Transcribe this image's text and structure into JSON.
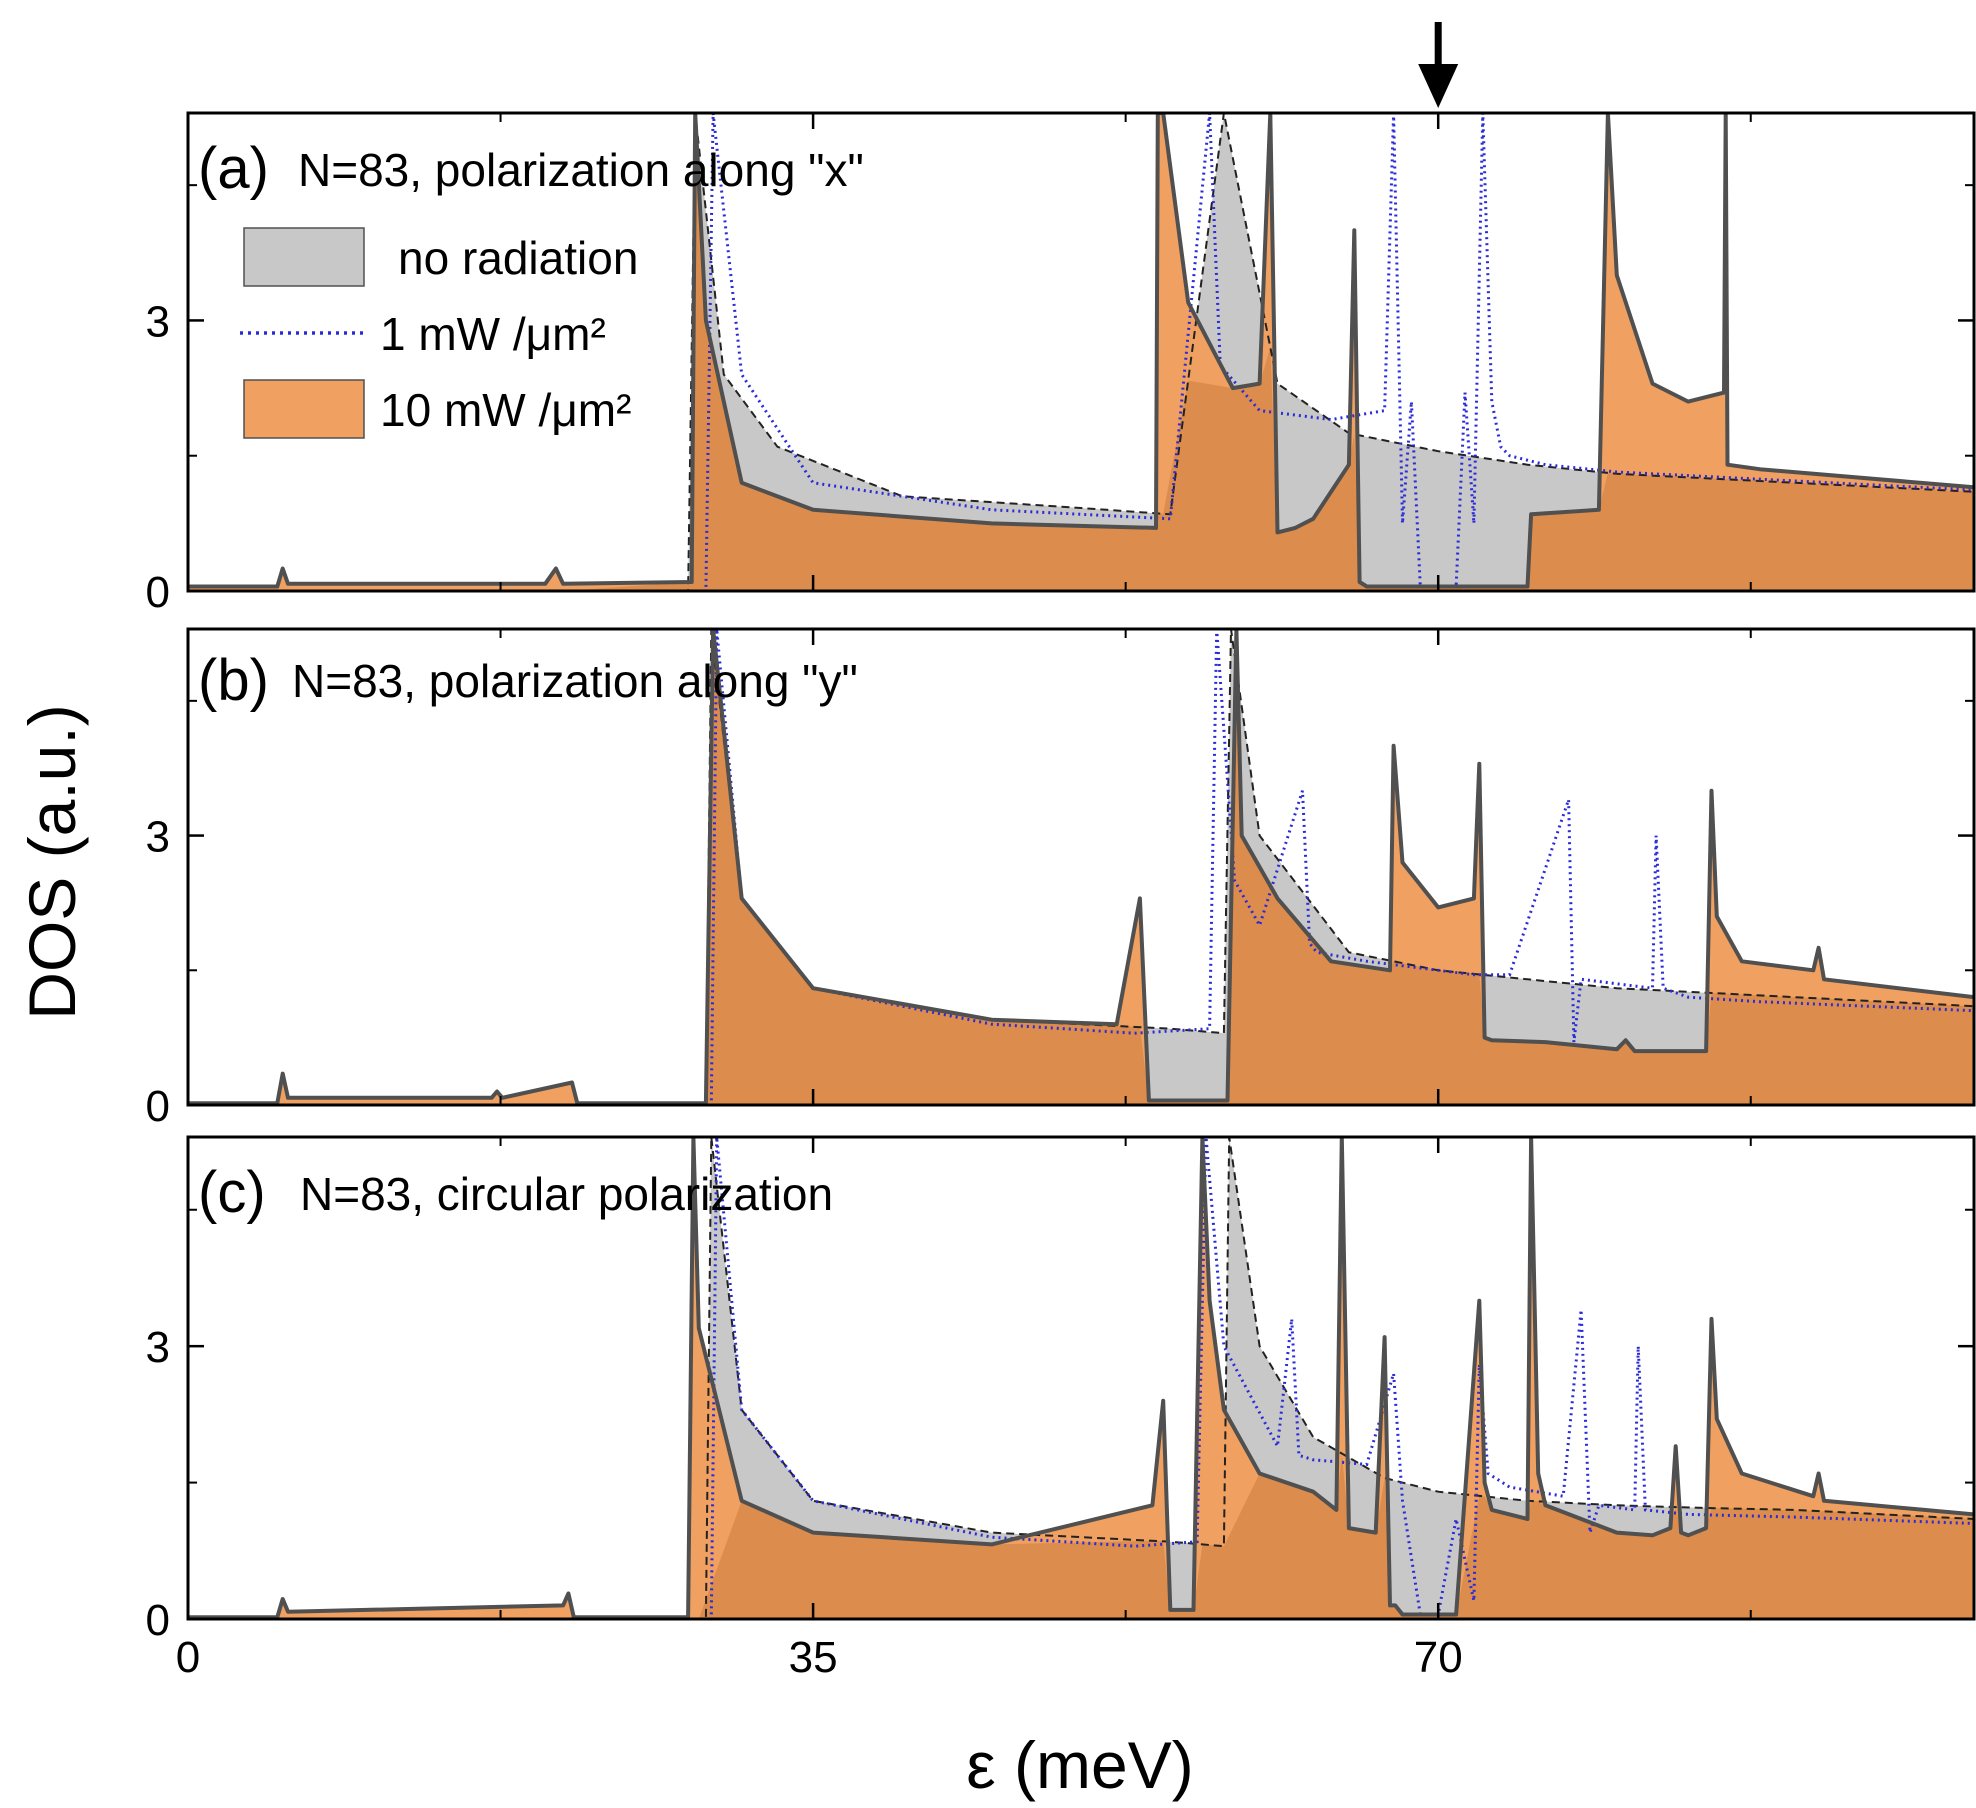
{
  "chart_data": {
    "type": "line",
    "figure": {
      "xlabel": "ε (meV)",
      "ylabel": "DOS (a.u.)",
      "xlim": [
        0,
        100
      ],
      "ylim": [
        0,
        5.3
      ],
      "x_ticks": [
        0,
        35,
        70
      ],
      "x_minor_ticks": [
        17.5,
        52.5,
        87.5
      ],
      "y_ticks": [
        0,
        3
      ],
      "y_minor_ticks": [
        1.5,
        4.5
      ],
      "arrow_at_x": 70
    },
    "legend": {
      "location": "upper-left of panel (a)",
      "entries": [
        {
          "label": "no radiation",
          "style": "gray-fill",
          "color": "#c8c8c8"
        },
        {
          "label": "1 mW /μm²",
          "style": "blue-dotted",
          "color": "#2b2bd8"
        },
        {
          "label": "10 mW /μm²",
          "style": "orange-fill",
          "color": "#f0a060"
        }
      ]
    },
    "colors": {
      "no_radiation_fill": "#c8c8c8",
      "orange_fill": "#f0a060",
      "orange_dark_fill": "#dc8c4c",
      "blue_dotted": "#2b2bd8",
      "outline": "#505050",
      "dotted_red": "#b05050"
    },
    "panels": [
      {
        "id": "a",
        "label": "(a)",
        "title": "N=83, polarization along \"x\"",
        "series": [
          {
            "name": "no radiation",
            "x": [
              0,
              28,
              28.4,
              30,
              33,
              40,
              50,
              55,
              58,
              61,
              65,
              70,
              75,
              80,
              90,
              100
            ],
            "y": [
              0,
              0,
              5.3,
              2.4,
              1.6,
              1.05,
              0.92,
              0.85,
              5.3,
              2.3,
              1.75,
              1.55,
              1.4,
              1.3,
              1.2,
              1.1
            ]
          },
          {
            "name": "1 mW /μm²",
            "x": [
              0,
              29,
              29.4,
              31,
              35,
              45,
              55,
              57.2,
              57.8,
              60,
              64,
              67,
              67.5,
              68,
              68.5,
              69,
              71,
              71.5,
              72,
              72.5,
              73,
              73.5,
              74,
              76,
              80,
              90,
              100
            ],
            "y": [
              0,
              0,
              5.3,
              2.4,
              1.2,
              0.9,
              0.8,
              5.3,
              2.5,
              2.0,
              1.9,
              2.0,
              5.3,
              0.75,
              2.1,
              0.05,
              0.05,
              2.2,
              0.75,
              5.3,
              2.1,
              1.6,
              1.5,
              1.4,
              1.32,
              1.22,
              1.12
            ]
          },
          {
            "name": "10 mW /μm²",
            "x": [
              0,
              5,
              5.3,
              5.6,
              20,
              20.6,
              21,
              28.2,
              28.4,
              29,
              31,
              35,
              45,
              54.2,
              54.3,
              54.6,
              56,
              58.5,
              60,
              60.6,
              61,
              62,
              63,
              65,
              65.3,
              65.6,
              66,
              66.2,
              75,
              75.2,
              79,
              79.5,
              80,
              82,
              84,
              86,
              86.1,
              86.2,
              88,
              100
            ],
            "y": [
              0.05,
              0.05,
              0.25,
              0.08,
              0.08,
              0.25,
              0.08,
              0.1,
              5.3,
              3.0,
              1.2,
              0.9,
              0.75,
              0.7,
              5.3,
              5.3,
              3.2,
              2.25,
              2.3,
              5.3,
              0.65,
              0.7,
              0.8,
              1.4,
              4.0,
              0.1,
              0.05,
              0.05,
              0.05,
              0.85,
              0.9,
              5.3,
              3.5,
              2.3,
              2.1,
              2.2,
              5.3,
              1.4,
              1.35,
              1.15
            ]
          }
        ]
      },
      {
        "id": "b",
        "label": "(b)",
        "title": "N=83, polarization along \"y\"",
        "series": [
          {
            "name": "no radiation",
            "x": [
              0,
              29,
              29.3,
              31,
              35,
              45,
              55,
              58,
              58.4,
              60,
              65,
              70,
              75,
              80,
              85,
              90,
              100
            ],
            "y": [
              0,
              0,
              5.3,
              2.3,
              1.3,
              0.95,
              0.85,
              0.8,
              5.3,
              3.0,
              1.7,
              1.5,
              1.4,
              1.3,
              1.25,
              1.2,
              1.1
            ]
          },
          {
            "name": "1 mW /μm²",
            "x": [
              0,
              29.3,
              29.6,
              31,
              35,
              45,
              53,
              57.2,
              57.6,
              58.6,
              60,
              62.4,
              62.8,
              63.2,
              66,
              72,
              74,
              77.3,
              77.6,
              78,
              82,
              82.2,
              82.6,
              84,
              88,
              100
            ],
            "y": [
              0,
              0,
              5.3,
              2.3,
              1.3,
              0.9,
              0.8,
              0.85,
              5.3,
              2.5,
              2.0,
              3.5,
              1.8,
              1.7,
              1.6,
              1.45,
              1.45,
              3.4,
              0.7,
              1.4,
              1.3,
              3.0,
              1.3,
              1.2,
              1.15,
              1.05
            ]
          },
          {
            "name": "10 mW /μm²",
            "x": [
              0,
              5,
              5.3,
              5.6,
              17,
              17.3,
              17.6,
              21.5,
              21.8,
              22,
              29,
              29.4,
              31,
              35,
              45,
              52,
              53.3,
              53.8,
              54,
              58.2,
              58.7,
              59,
              61,
              64,
              67.3,
              67.5,
              68,
              70,
              72,
              72.3,
              72.6,
              73,
              76,
              80,
              80.5,
              81,
              85,
              85.3,
              85.6,
              87,
              91,
              91.3,
              91.6,
              100
            ],
            "y": [
              0.02,
              0.02,
              0.35,
              0.08,
              0.08,
              0.15,
              0.08,
              0.25,
              0.02,
              0.02,
              0.02,
              5.3,
              2.3,
              1.3,
              0.95,
              0.9,
              2.3,
              0.05,
              0.05,
              0.05,
              5.3,
              3.0,
              2.3,
              1.6,
              1.5,
              4.0,
              2.7,
              2.2,
              2.3,
              3.8,
              0.75,
              0.72,
              0.7,
              0.62,
              0.72,
              0.6,
              0.6,
              3.5,
              2.1,
              1.6,
              1.5,
              1.75,
              1.4,
              1.2
            ]
          }
        ]
      },
      {
        "id": "c",
        "label": "(c)",
        "title": "N=83, circular polarization",
        "series": [
          {
            "name": "no radiation",
            "x": [
              0,
              29,
              29.3,
              31,
              35,
              45,
              55,
              58,
              58.3,
              60,
              63,
              67,
              70,
              75,
              80,
              85,
              90,
              100
            ],
            "y": [
              0,
              0,
              5.3,
              2.3,
              1.3,
              0.95,
              0.85,
              0.8,
              5.3,
              3.0,
              2.0,
              1.55,
              1.4,
              1.3,
              1.25,
              1.22,
              1.2,
              1.1
            ]
          },
          {
            "name": "1 mW /μm²",
            "x": [
              0,
              29.3,
              29.6,
              31,
              35,
              45,
              53,
              56.5,
              57,
              58,
              61,
              61.8,
              62.2,
              63,
              66,
              67.5,
              68,
              69,
              70,
              71,
              72,
              72.3,
              72.8,
              74,
              77,
              78,
              78.5,
              79,
              81,
              81.2,
              81.6,
              84,
              90,
              100
            ],
            "y": [
              0,
              0,
              5.3,
              2.3,
              1.3,
              0.9,
              0.8,
              0.85,
              5.3,
              3.0,
              1.9,
              3.3,
              1.8,
              1.75,
              1.7,
              2.7,
              1.3,
              0.05,
              0.05,
              1.1,
              0.2,
              2.8,
              1.6,
              1.45,
              1.35,
              3.4,
              0.95,
              1.25,
              1.2,
              3.0,
              1.2,
              1.15,
              1.12,
              1.05
            ]
          },
          {
            "name": "10 mW /μm²",
            "x": [
              0,
              5,
              5.3,
              5.6,
              21,
              21.3,
              21.6,
              28,
              28.3,
              28.6,
              31,
              35,
              45,
              54,
              54.6,
              55,
              56.3,
              56.8,
              57.2,
              58,
              60,
              63,
              64.3,
              64.6,
              65,
              66.5,
              67,
              67.3,
              67.6,
              68,
              71,
              72.3,
              72.6,
              73,
              75,
              75.2,
              75.6,
              76,
              80,
              82,
              83,
              83.3,
              83.6,
              84,
              85,
              85.3,
              85.6,
              87,
              91,
              91.3,
              91.6,
              100
            ],
            "y": [
              0.02,
              0.02,
              0.22,
              0.08,
              0.15,
              0.28,
              0.02,
              0.02,
              5.3,
              3.2,
              1.3,
              0.95,
              0.82,
              1.25,
              2.4,
              0.1,
              0.1,
              5.3,
              3.5,
              2.3,
              1.6,
              1.4,
              1.2,
              5.3,
              1.0,
              0.95,
              3.1,
              0.15,
              0.15,
              0.05,
              0.05,
              3.5,
              1.5,
              1.2,
              1.1,
              5.3,
              1.6,
              1.25,
              0.95,
              0.92,
              1.0,
              1.9,
              0.95,
              0.92,
              1.0,
              3.3,
              2.2,
              1.6,
              1.35,
              1.6,
              1.3,
              1.15
            ]
          }
        ]
      }
    ]
  }
}
